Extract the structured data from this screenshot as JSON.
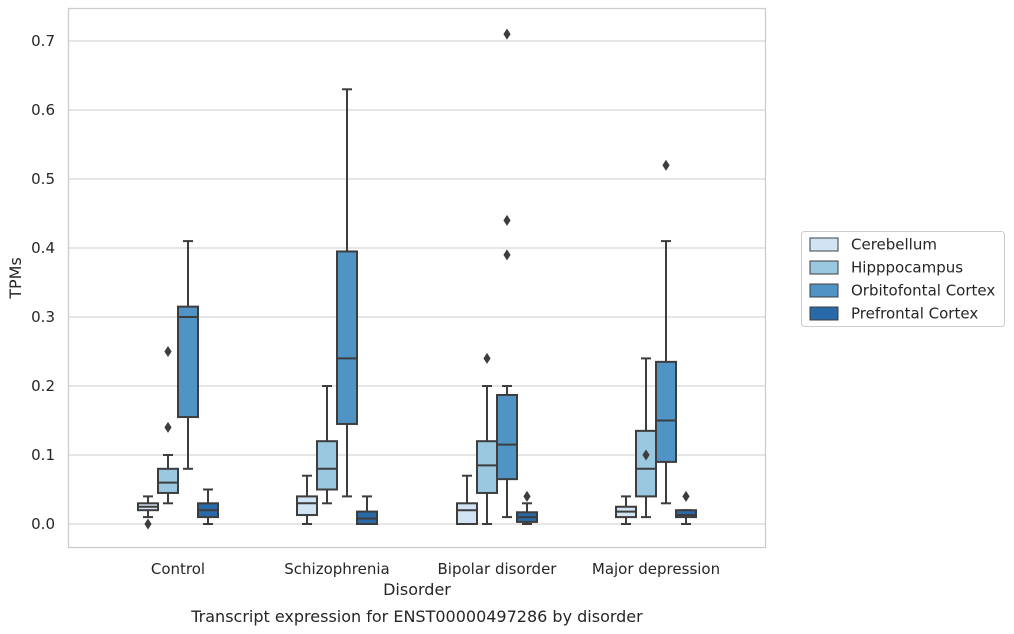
{
  "chart_data": {
    "type": "box",
    "caption": "Transcript expression for ENST00000497286 by disorder",
    "xlabel": "Disorder",
    "ylabel": "TPMs",
    "ylim": [
      -0.035,
      0.745
    ],
    "yticks": [
      0.0,
      0.1,
      0.2,
      0.3,
      0.4,
      0.5,
      0.6,
      0.7
    ],
    "ytick_labels": [
      "0.0",
      "0.1",
      "0.2",
      "0.3",
      "0.4",
      "0.5",
      "0.6",
      "0.7"
    ],
    "grid": "horizontal",
    "legend_position": "right",
    "categories": [
      "Control",
      "Schizophrenia",
      "Bipolar disorder",
      "Major depression"
    ],
    "series": [
      {
        "name": "Cerebellum",
        "color": "#d2e3f3",
        "boxes": [
          {
            "whislo": 0.01,
            "q1": 0.02,
            "med": 0.025,
            "q3": 0.03,
            "whishi": 0.04,
            "fliers": [
              0.0
            ]
          },
          {
            "whislo": 0.0,
            "q1": 0.013,
            "med": 0.03,
            "q3": 0.04,
            "whishi": 0.07,
            "fliers": []
          },
          {
            "whislo": 0.0,
            "q1": 0.0,
            "med": 0.02,
            "q3": 0.03,
            "whishi": 0.07,
            "fliers": []
          },
          {
            "whislo": 0.0,
            "q1": 0.01,
            "med": 0.018,
            "q3": 0.025,
            "whishi": 0.04,
            "fliers": []
          }
        ]
      },
      {
        "name": "Hipppocampus",
        "color": "#9ac8e0",
        "boxes": [
          {
            "whislo": 0.03,
            "q1": 0.045,
            "med": 0.06,
            "q3": 0.08,
            "whishi": 0.1,
            "fliers": [
              0.14,
              0.25
            ]
          },
          {
            "whislo": 0.03,
            "q1": 0.05,
            "med": 0.08,
            "q3": 0.12,
            "whishi": 0.2,
            "fliers": []
          },
          {
            "whislo": 0.0,
            "q1": 0.045,
            "med": 0.085,
            "q3": 0.12,
            "whishi": 0.2,
            "fliers": [
              0.24
            ]
          },
          {
            "whislo": 0.01,
            "q1": 0.04,
            "med": 0.08,
            "q3": 0.135,
            "whishi": 0.24,
            "fliers": [
              0.1
            ]
          }
        ]
      },
      {
        "name": "Orbitofontal Cortex",
        "color": "#5093c5",
        "boxes": [
          {
            "whislo": 0.08,
            "q1": 0.155,
            "med": 0.3,
            "q3": 0.315,
            "whishi": 0.41,
            "fliers": []
          },
          {
            "whislo": 0.04,
            "q1": 0.145,
            "med": 0.24,
            "q3": 0.395,
            "whishi": 0.63,
            "fliers": []
          },
          {
            "whislo": 0.01,
            "q1": 0.065,
            "med": 0.115,
            "q3": 0.187,
            "whishi": 0.2,
            "fliers": [
              0.39,
              0.44,
              0.71
            ]
          },
          {
            "whislo": 0.03,
            "q1": 0.09,
            "med": 0.15,
            "q3": 0.235,
            "whishi": 0.41,
            "fliers": [
              0.52
            ]
          }
        ]
      },
      {
        "name": "Prefrontal Cortex",
        "color": "#2a69a7",
        "boxes": [
          {
            "whislo": 0.0,
            "q1": 0.01,
            "med": 0.02,
            "q3": 0.03,
            "whishi": 0.05,
            "fliers": []
          },
          {
            "whislo": 0.0,
            "q1": 0.0,
            "med": 0.008,
            "q3": 0.018,
            "whishi": 0.04,
            "fliers": []
          },
          {
            "whislo": 0.0,
            "q1": 0.003,
            "med": 0.01,
            "q3": 0.017,
            "whishi": 0.03,
            "fliers": [
              0.04
            ]
          },
          {
            "whislo": 0.0,
            "q1": 0.01,
            "med": 0.013,
            "q3": 0.02,
            "whishi": 0.02,
            "fliers": [
              0.04
            ]
          }
        ]
      }
    ]
  }
}
